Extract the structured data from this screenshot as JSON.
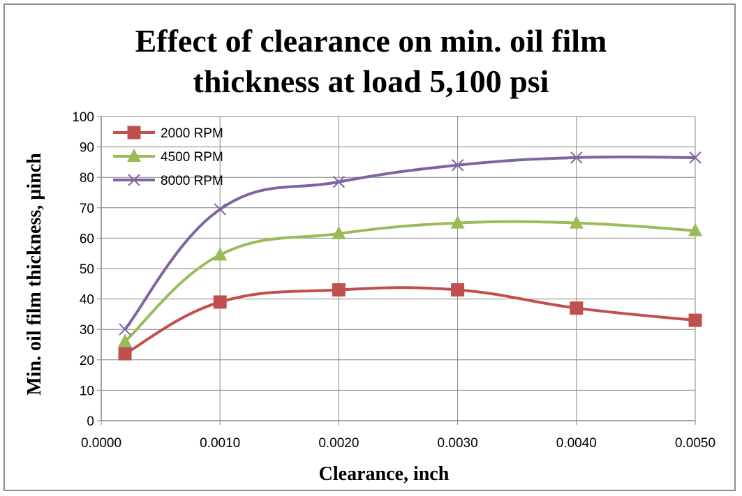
{
  "chart_data": {
    "type": "line",
    "title_lines": [
      "Effect of clearance on min. oil film",
      "thickness at load 5,100 psi"
    ],
    "xlabel": "Clearance, inch",
    "ylabel": "Min. oil film thickness, µinch",
    "xlim": [
      0.0,
      0.005
    ],
    "ylim": [
      0,
      100
    ],
    "x_ticks": [
      "0.0000",
      "0.0010",
      "0.0020",
      "0.0030",
      "0.0040",
      "0.0050"
    ],
    "y_ticks": [
      "0",
      "10",
      "20",
      "30",
      "40",
      "50",
      "60",
      "70",
      "80",
      "90",
      "100"
    ],
    "grid": true,
    "smoothed_lines": true,
    "legend_position": "top-left",
    "x": [
      0.0002,
      0.001,
      0.002,
      0.003,
      0.004,
      0.005
    ],
    "series": [
      {
        "name": "2000 RPM",
        "color": "#c0504d",
        "marker": "square",
        "values": [
          22,
          39,
          43,
          43,
          37,
          33
        ]
      },
      {
        "name": "4500 RPM",
        "color": "#9bbb59",
        "marker": "triangle",
        "values": [
          26,
          54.5,
          61.5,
          65,
          65,
          62.5
        ]
      },
      {
        "name": "8000 RPM",
        "color": "#8064a2",
        "marker": "x",
        "values": [
          30,
          69.5,
          78.5,
          84,
          86.5,
          86.5
        ]
      }
    ]
  }
}
